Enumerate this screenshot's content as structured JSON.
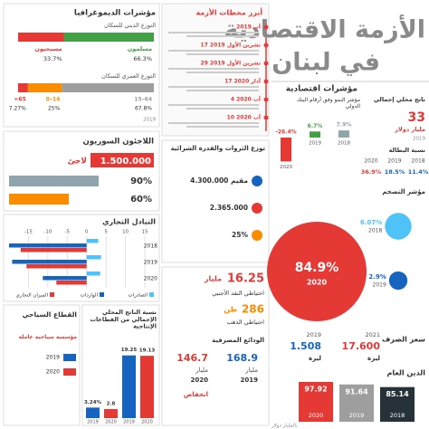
{
  "title": {
    "line1": "الأزمة الاقتصادية",
    "line2": "في لبنان"
  },
  "demographics": {
    "heading": "مؤشرات الديموغرافيا",
    "religion": {
      "heading": "التوزع الديني للسكان",
      "groups": [
        {
          "name": "مسلمون",
          "value": "66.3%",
          "color": "#43a047"
        },
        {
          "name": "مسيحيون",
          "value": "33.7%",
          "color": "#e53935"
        }
      ]
    },
    "age": {
      "heading": "التوزع العمري للسكان",
      "groups": [
        {
          "label": "15–64",
          "value": "67.8%",
          "color": "#9e9e9e"
        },
        {
          "label": "0–14",
          "value": "25%",
          "color": "#fb8c00"
        },
        {
          "label": "+65",
          "value": "7.27%",
          "color": "#e53935"
        }
      ]
    },
    "year": "2019"
  },
  "timeline": {
    "heading": "أبرز محطات الأزمة",
    "dates": [
      "آب 2019",
      "17 تشرين الأول 2019",
      "29 تشرين الأول 2019",
      "17 آذار 2020",
      "4 آب 2020",
      "10 آب 2020"
    ]
  },
  "refugees": {
    "heading": "اللاجئون السوريون",
    "count": "1.500.000",
    "unit": "لاجئ",
    "stats": [
      "90%",
      "60%"
    ]
  },
  "wealth": {
    "heading": "توزع الثروات والقدرة الشرائية",
    "residents": "4.300.000 مقيم",
    "poor": "2.365.000",
    "share": "25%"
  },
  "trade": {
    "heading": "التبادل التجاري",
    "xlim": [
      -20,
      15
    ],
    "xticks": [
      -15,
      -10,
      -5,
      0,
      5,
      10,
      15
    ],
    "years": [
      "2018",
      "2019",
      "2020"
    ],
    "series": [
      {
        "name": "الصادرات",
        "color": "#4fc3f7",
        "values": [
          3.0,
          3.7,
          3.5
        ]
      },
      {
        "name": "الواردات",
        "color": "#1565c0",
        "values": [
          -20,
          -19.2,
          -11.3
        ]
      },
      {
        "name": "الميزان التجاري",
        "color": "#e53935",
        "values": [
          -17,
          -15.5,
          -7.8
        ]
      }
    ]
  },
  "sectors": {
    "heading": "نسبة الناتج المحلي الإجمالي من القطاعات الإنتاجية",
    "bars": [
      {
        "year": "2020",
        "value": "19.13",
        "color": "#e53935"
      },
      {
        "year": "2019",
        "value": "19.25",
        "color": "#1565c0"
      },
      {
        "year": "2020",
        "value": "2.8",
        "color": "#e53935"
      },
      {
        "year": "2019",
        "value": "3.24%",
        "color": "#1565c0"
      }
    ]
  },
  "tourism": {
    "heading": "القطاع السياحي",
    "label": "مؤسسة سياحية عاملة",
    "years": [
      "2019",
      "2020"
    ]
  },
  "reserves": {
    "fx": {
      "value": "16.25",
      "unit": "مليار",
      "label": "احتياطي النقد الأجنبي"
    },
    "gold": {
      "value": "286",
      "unit": "طن",
      "label": "احتياطي الذهب"
    },
    "deposits": {
      "label": "الودائع المصرفية",
      "items": [
        {
          "year": "2019",
          "value": "168.9",
          "unit": "مليار"
        },
        {
          "year": "2020",
          "value": "146.7",
          "unit": "مليار"
        }
      ],
      "note": "انخفاض"
    }
  },
  "indicators": {
    "heading": "مؤشرات اقتصادية",
    "gdp": {
      "label": "ناتج محلي إجمالي",
      "value": "33",
      "unit": "مليار دولار",
      "year": "2019"
    },
    "growth": {
      "label": "مؤشر النمو وفق أرقام البنك الدولي",
      "points": [
        {
          "year": "2018",
          "value": "7.9%"
        },
        {
          "year": "2019",
          "value": "6.7%"
        },
        {
          "year": "2020",
          "value": "-26.4%"
        }
      ]
    },
    "unemployment": {
      "label": "نسبة البطالة",
      "points": [
        {
          "year": "2018",
          "value": "11.4%"
        },
        {
          "year": "2019",
          "value": "18.5%"
        },
        {
          "year": "2020",
          "value": "36.9%"
        }
      ]
    },
    "inflation": {
      "label": "مؤشر التضخم",
      "points": [
        {
          "year": "2018",
          "value": "6.07%",
          "color": "#4fc3f7"
        },
        {
          "year": "2019",
          "value": "2.9%",
          "color": "#1565c0"
        },
        {
          "year": "2020",
          "value": "84.9%",
          "color": "#e53935"
        }
      ]
    }
  },
  "exchange": {
    "label": "سعر الصرف",
    "items": [
      {
        "year": "2021",
        "value": "17.600",
        "unit": "ليرة"
      },
      {
        "year": "2019",
        "value": "1.508",
        "unit": "ليرة"
      }
    ]
  },
  "debt": {
    "label": "الدين العام",
    "note": "بالمليار دولار",
    "points": [
      {
        "year": "2018",
        "value": "85.14",
        "color": "#263238"
      },
      {
        "year": "2019",
        "value": "91.64",
        "color": "#9e9e9e"
      },
      {
        "year": "2020",
        "value": "97.92",
        "color": "#e53935"
      }
    ]
  }
}
